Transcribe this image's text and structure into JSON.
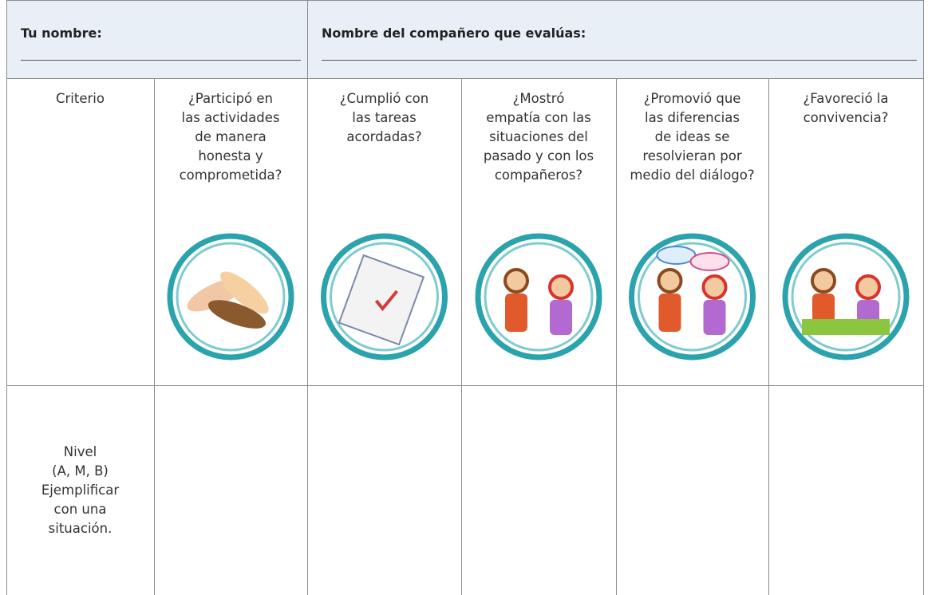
{
  "header": {
    "your_name_label": "Tu nombre:",
    "partner_name_label": "Nombre del compañero que evalúas:"
  },
  "table": {
    "criteria_header": [
      "Criterio"
    ],
    "criteria": [
      [
        "¿Participó en",
        "las actividades",
        "de manera",
        "honesta y",
        "comprometida?"
      ],
      [
        "¿Cumplió con",
        "las tareas",
        "acordadas?"
      ],
      [
        "¿Mostró",
        "empatía con las",
        "situaciones del",
        "pasado y con los",
        "compañeros?"
      ],
      [
        "¿Promovió que",
        "las diferencias",
        "de ideas se",
        "resolvieran por",
        "medio del diálogo?"
      ],
      [
        "¿Favoreció la",
        "convivencia?"
      ]
    ],
    "level_label": [
      "Nivel",
      "(A, M, B)",
      "Ejemplificar",
      "con una",
      "situación."
    ]
  }
}
